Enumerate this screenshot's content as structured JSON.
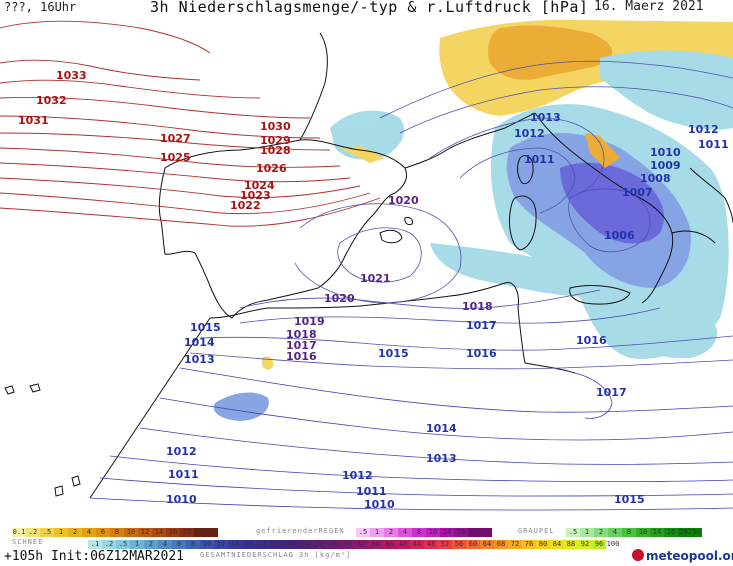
{
  "header": {
    "left": "???, 16Uhr",
    "title": "3h Niederschlagsmenge/-typ & r.Luftdruck [hPa]",
    "date": "16. Maerz 2021"
  },
  "isobars": [
    {
      "text": "1033",
      "color": "#aa1111"
    },
    {
      "text": "1032",
      "color": "#aa1111"
    },
    {
      "text": "1031",
      "color": "#aa1111"
    },
    {
      "text": "1030",
      "color": "#aa1111"
    },
    {
      "text": "1029",
      "color": "#aa1111"
    },
    {
      "text": "1028",
      "color": "#aa1111"
    },
    {
      "text": "1027",
      "color": "#aa1111"
    },
    {
      "text": "1026",
      "color": "#aa1111"
    },
    {
      "text": "1025",
      "color": "#aa1111"
    },
    {
      "text": "1024",
      "color": "#aa1111"
    },
    {
      "text": "1023",
      "color": "#aa1111"
    },
    {
      "text": "1022",
      "color": "#aa1111"
    },
    {
      "text": "1021",
      "color": "#552288"
    },
    {
      "text": "1020",
      "color": "#552288"
    },
    {
      "text": "1020",
      "color": "#552288"
    },
    {
      "text": "1019",
      "color": "#552288"
    },
    {
      "text": "1018",
      "color": "#552288"
    },
    {
      "text": "1018",
      "color": "#552288"
    },
    {
      "text": "1017",
      "color": "#552288"
    },
    {
      "text": "1017",
      "color": "#2233aa"
    },
    {
      "text": "1016",
      "color": "#552288"
    },
    {
      "text": "1016",
      "color": "#2233aa"
    },
    {
      "text": "1016",
      "color": "#2233aa"
    },
    {
      "text": "1015",
      "color": "#2233aa"
    },
    {
      "text": "1015",
      "color": "#2233aa"
    },
    {
      "text": "1015",
      "color": "#2233aa"
    },
    {
      "text": "1014",
      "color": "#2233aa"
    },
    {
      "text": "1014",
      "color": "#2233aa"
    },
    {
      "text": "1013",
      "color": "#2233aa"
    },
    {
      "text": "1013",
      "color": "#2233aa"
    },
    {
      "text": "1013",
      "color": "#2233aa"
    },
    {
      "text": "1012",
      "color": "#2233aa"
    },
    {
      "text": "1012",
      "color": "#2233aa"
    },
    {
      "text": "1012",
      "color": "#2233aa"
    },
    {
      "text": "1012",
      "color": "#2233aa"
    },
    {
      "text": "1011",
      "color": "#2233aa"
    },
    {
      "text": "1011",
      "color": "#2233aa"
    },
    {
      "text": "1011",
      "color": "#2233aa"
    },
    {
      "text": "1011",
      "color": "#2233aa"
    },
    {
      "text": "1010",
      "color": "#2233aa"
    },
    {
      "text": "1010",
      "color": "#2233aa"
    },
    {
      "text": "1010",
      "color": "#2233aa"
    },
    {
      "text": "1009",
      "color": "#2233aa"
    },
    {
      "text": "1008",
      "color": "#2233aa"
    },
    {
      "text": "1007",
      "color": "#2233aa"
    },
    {
      "text": "1006",
      "color": "#2233aa"
    },
    {
      "text": "1017",
      "color": "#2233aa"
    }
  ],
  "legend": {
    "schnee_label": "SCHNEE",
    "schnee_values": [
      "0.1",
      ".2",
      ".5",
      "1",
      "2",
      "4",
      "6",
      "8",
      "10",
      "12",
      "14",
      "16",
      "18",
      "2025+"
    ],
    "regen_label": "gefrierenderREGEN",
    "regen_values": [
      ".5",
      "1",
      "2",
      "4",
      "8",
      "10",
      "14",
      "16",
      "2025+"
    ],
    "graupel_label": "GRAUPEL",
    "graupel_values": [
      ".5",
      "1",
      "2",
      "4",
      "8",
      "10",
      "14",
      "16",
      "2025+"
    ],
    "gesamt_values": [
      ".1",
      ".2",
      ".5",
      "1",
      "2",
      "4",
      "6",
      "8",
      "10",
      "12",
      "14",
      "16",
      "18",
      "20",
      "22",
      "24",
      "26",
      "28",
      "30",
      "32",
      "34",
      "36",
      "40",
      "44",
      "48",
      "52",
      "56",
      "60",
      "64",
      "68",
      "72",
      "76",
      "80",
      "84",
      "88",
      "92",
      "96",
      "100"
    ],
    "gesamt_title": "GESAMTNIEDERSCHLAG 3h [kg/m²]",
    "colors": {
      "schnee": [
        "#f7f0b0",
        "#f3e27a",
        "#f0d24a",
        "#edc22a",
        "#e9b21a",
        "#e4a010",
        "#de8f10",
        "#d67e10",
        "#cc6c10",
        "#c05a10",
        "#b04a10",
        "#9c3a10",
        "#862c10",
        "#6e2010"
      ],
      "regen": [
        "#f6c6f6",
        "#f0a0f0",
        "#ea7aea",
        "#e050e0",
        "#d030d0",
        "#c020c0",
        "#a810a8",
        "#901090",
        "#780878"
      ],
      "graupel": [
        "#c8f0c0",
        "#a8e8a0",
        "#88dc80",
        "#68d060",
        "#48c040",
        "#30b028",
        "#20a018",
        "#109010",
        "#088008"
      ],
      "gesamt": [
        "#b6e6ea",
        "#9ad8e4",
        "#80c8dc",
        "#6cb4d4",
        "#5aa0cc",
        "#4e8cc4",
        "#4678bc",
        "#4064b4",
        "#3c52ac",
        "#3a44a4",
        "#38389c",
        "#3a3094",
        "#3c2a8c",
        "#402684",
        "#462280",
        "#50207c",
        "#5c1e78",
        "#6a1c74",
        "#7a1a70",
        "#8a186c",
        "#9c1868",
        "#ae1864",
        "#c01860",
        "#d22058",
        "#e02c4e",
        "#ea3e44",
        "#f0523a",
        "#f46832",
        "#f67e2a",
        "#f89424",
        "#f8aa20",
        "#f8be1e",
        "#f6d01c",
        "#f0de1c",
        "#e4e81e",
        "#d2ee22",
        "#bef028",
        "#ffffff"
      ]
    }
  },
  "footer": {
    "left": "+105h Init:06Z12MAR2021",
    "brand": "meteopool.org"
  },
  "map_colors": {
    "sea": "#ffffff",
    "coast": "#111111",
    "precip_light": "#9ed8e6",
    "precip_mid": "#7a9be0",
    "precip_heavy": "#5a5ad8",
    "snow_yellow": "#f3d150",
    "snow_orange": "#e9a520"
  }
}
